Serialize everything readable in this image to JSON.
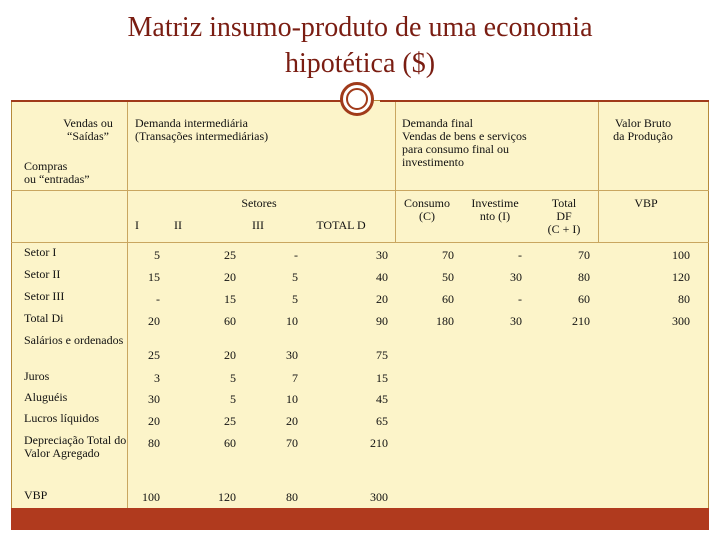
{
  "title": {
    "line1": "Matriz insumo-produto de uma economia",
    "line2": "hipotética ($)"
  },
  "headers": {
    "vendas": [
      "Vendas ou",
      "“Saídas”"
    ],
    "compras": [
      "Compras",
      "ou “entradas”"
    ],
    "demanda_intermediaria": [
      "Demanda intermediária",
      "(Transações intermediárias)"
    ],
    "demanda_final": [
      "Demanda final",
      "Vendas de bens e serviços",
      "para consumo final ou",
      "investimento"
    ],
    "valor_bruto": [
      "Valor Bruto",
      "da Produção"
    ],
    "setores": "Setores",
    "col_i": "I",
    "col_ii": "II",
    "col_iii": "III",
    "total_d": "TOTAL  D",
    "consumo": [
      "Consumo",
      "(C)"
    ],
    "investimento": [
      "Investime",
      "nto (I)"
    ],
    "total_df": [
      "Total",
      "DF",
      "(C + I)"
    ],
    "vbp": "VBP"
  },
  "rows": [
    {
      "label": "Setor I",
      "values": [
        "5",
        "25",
        "-",
        "30",
        "70",
        "-",
        "70",
        "100"
      ]
    },
    {
      "label": "Setor II",
      "values": [
        "15",
        "20",
        "5",
        "40",
        "50",
        "30",
        "80",
        "120"
      ]
    },
    {
      "label": "Setor III",
      "values": [
        "-",
        "15",
        "5",
        "20",
        "60",
        "-",
        "60",
        "80"
      ]
    },
    {
      "label": "Total Di",
      "values": [
        "20",
        "60",
        "10",
        "90",
        "180",
        "30",
        "210",
        "300"
      ]
    },
    {
      "label": "Salários e ordenados",
      "values": [
        "25",
        "20",
        "30",
        "75"
      ]
    },
    {
      "label": "Juros",
      "values": [
        "3",
        "5",
        "7",
        "15"
      ]
    },
    {
      "label": "Aluguéis",
      "values": [
        "30",
        "5",
        "10",
        "45"
      ]
    },
    {
      "label": "Lucros líquidos",
      "values": [
        "20",
        "25",
        "20",
        "65"
      ]
    },
    {
      "label": "Depreciação Total do Valor Agregado",
      "values": [
        "80",
        "60",
        "70",
        "210"
      ]
    },
    {
      "label": "VBP",
      "values": [
        "100",
        "120",
        "80",
        "300"
      ]
    }
  ]
}
